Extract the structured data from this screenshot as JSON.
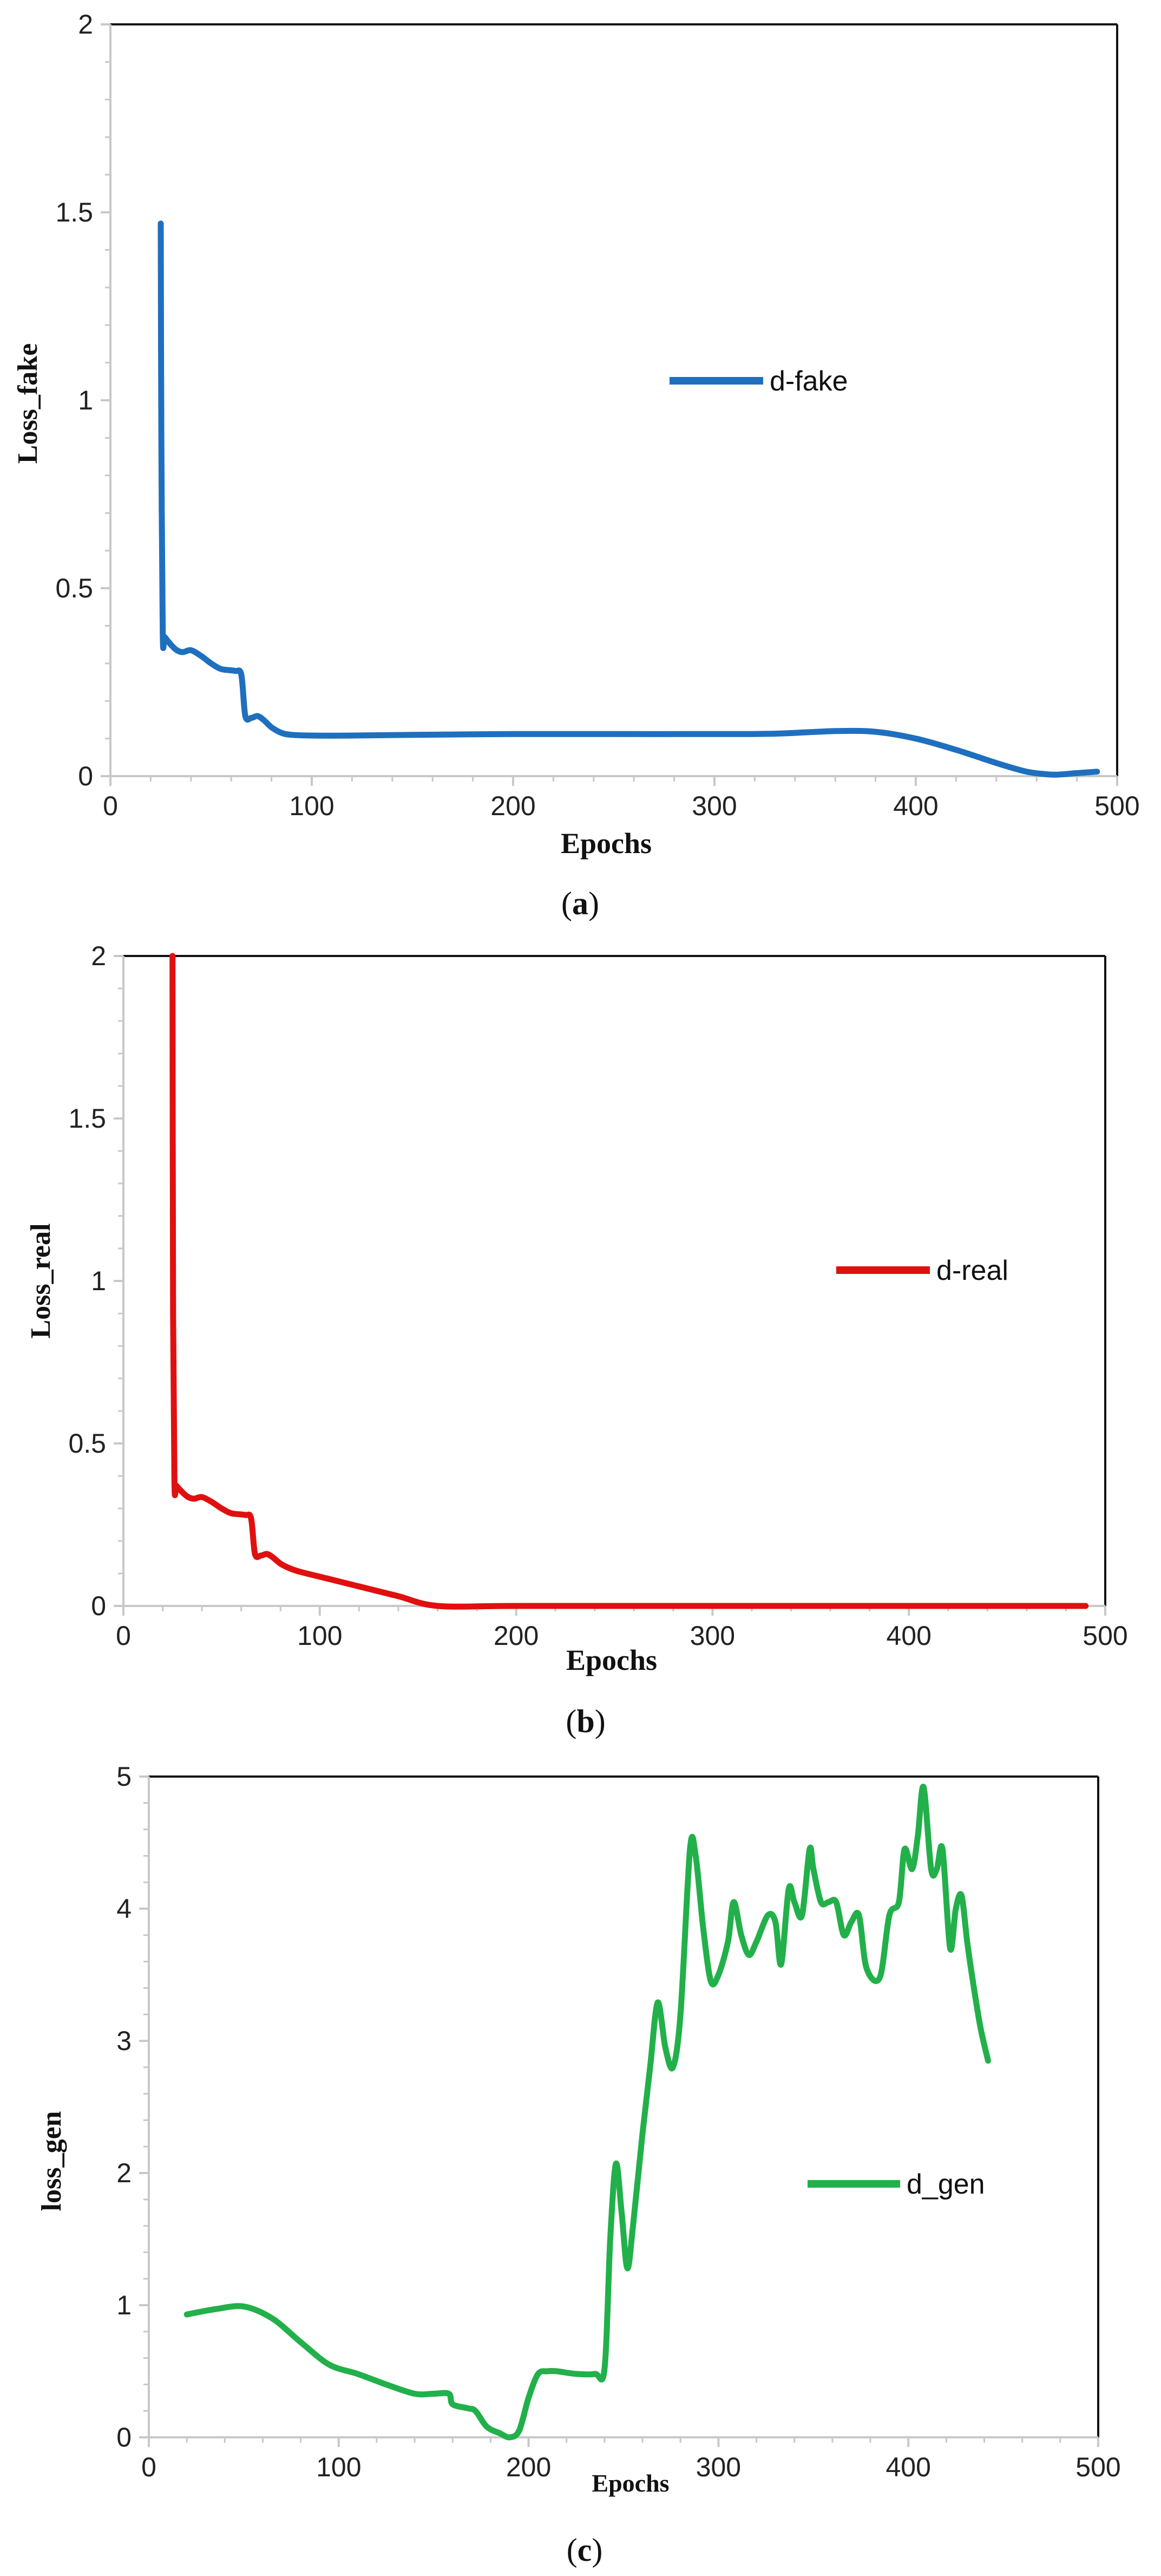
{
  "chart_data": [
    {
      "type": "line",
      "id": "a",
      "title": "",
      "xlabel": "Epochs",
      "ylabel": "Loss_fake",
      "xlim": [
        0,
        500
      ],
      "ylim": [
        0,
        2
      ],
      "xticks": [
        "0",
        "100",
        "200",
        "300",
        "400",
        "500"
      ],
      "yticks": [
        "0",
        "0.5",
        "1",
        "1.5",
        "2"
      ],
      "legend_position": "center-right",
      "caption": {
        "open": "(",
        "letter": "a",
        "close": ")"
      },
      "series": [
        {
          "name": "d-fake",
          "color": "#1f6fbf",
          "x": [
            25,
            25.3,
            26,
            27,
            30,
            33,
            36,
            40,
            45,
            50,
            55,
            62,
            65,
            67,
            70,
            73,
            76,
            80,
            85,
            90,
            100,
            120,
            150,
            200,
            250,
            300,
            330,
            360,
            380,
            400,
            420,
            440,
            455,
            465,
            470,
            480,
            490
          ],
          "values": [
            1.47,
            0.9,
            0.38,
            0.37,
            0.35,
            0.335,
            0.33,
            0.335,
            0.32,
            0.3,
            0.285,
            0.28,
            0.27,
            0.16,
            0.155,
            0.16,
            0.15,
            0.13,
            0.115,
            0.11,
            0.108,
            0.108,
            0.11,
            0.112,
            0.112,
            0.112,
            0.113,
            0.12,
            0.118,
            0.1,
            0.07,
            0.035,
            0.012,
            0.005,
            0.004,
            0.008,
            0.012
          ]
        }
      ]
    },
    {
      "type": "line",
      "id": "b",
      "title": "",
      "xlabel": "Epochs",
      "ylabel": "Loss_real",
      "xlim": [
        0,
        500
      ],
      "ylim": [
        0,
        2
      ],
      "xticks": [
        "0",
        "100",
        "200",
        "300",
        "400",
        "500"
      ],
      "yticks": [
        "0",
        "0.5",
        "1",
        "1.5",
        "2"
      ],
      "legend_position": "center-right",
      "caption": {
        "open": "(",
        "letter": "b",
        "close": ")"
      },
      "series": [
        {
          "name": "d-real",
          "color": "#e01010",
          "x": [
            25,
            25.3,
            26,
            27,
            30,
            33,
            36,
            40,
            45,
            50,
            55,
            62,
            65,
            67,
            70,
            73,
            76,
            80,
            85,
            90,
            100,
            120,
            140,
            160,
            200,
            300,
            400,
            490
          ],
          "values": [
            2.0,
            0.9,
            0.38,
            0.37,
            0.35,
            0.335,
            0.33,
            0.335,
            0.32,
            0.3,
            0.285,
            0.28,
            0.27,
            0.16,
            0.155,
            0.16,
            0.15,
            0.13,
            0.115,
            0.105,
            0.09,
            0.06,
            0.03,
            0.0,
            0.0,
            0.0,
            0.0,
            0.0
          ]
        }
      ]
    },
    {
      "type": "line",
      "id": "c",
      "title": "",
      "xlabel": "Epochs",
      "ylabel": "loss_gen",
      "xlim": [
        0,
        500
      ],
      "ylim": [
        0,
        5
      ],
      "xticks": [
        "0",
        "100",
        "200",
        "300",
        "400",
        "500"
      ],
      "yticks": [
        "0",
        "1",
        "2",
        "3",
        "4",
        "5"
      ],
      "legend_position": "center-right",
      "caption": {
        "open": "(",
        "letter": "c",
        "close": ")"
      },
      "series": [
        {
          "name": "d_gen",
          "color": "#22b04a",
          "x": [
            20,
            35,
            50,
            65,
            80,
            95,
            110,
            125,
            140,
            150,
            158,
            160,
            168,
            172,
            178,
            185,
            190,
            195,
            200,
            205,
            210,
            215,
            225,
            235,
            240,
            243,
            246,
            249,
            252,
            255,
            260,
            264,
            268,
            272,
            276,
            280,
            285,
            288,
            292,
            296,
            300,
            305,
            308,
            312,
            316,
            320,
            326,
            330,
            333,
            337,
            340,
            344,
            348,
            350,
            354,
            358,
            362,
            366,
            370,
            374,
            378,
            385,
            390,
            395,
            398,
            402,
            405,
            408,
            412,
            415,
            418,
            422,
            425,
            428,
            431,
            434,
            438,
            442
          ],
          "values": [
            0.93,
            0.97,
            0.99,
            0.9,
            0.72,
            0.55,
            0.48,
            0.4,
            0.33,
            0.33,
            0.33,
            0.25,
            0.22,
            0.2,
            0.08,
            0.03,
            0.0,
            0.05,
            0.3,
            0.48,
            0.5,
            0.5,
            0.48,
            0.48,
            0.52,
            1.5,
            2.07,
            1.7,
            1.28,
            1.6,
            2.3,
            2.8,
            3.29,
            2.95,
            2.8,
            3.2,
            4.45,
            4.4,
            3.85,
            3.45,
            3.5,
            3.75,
            4.05,
            3.8,
            3.65,
            3.75,
            3.95,
            3.9,
            3.58,
            4.15,
            4.05,
            3.95,
            4.45,
            4.3,
            4.05,
            4.05,
            4.05,
            3.8,
            3.9,
            3.95,
            3.55,
            3.48,
            3.95,
            4.05,
            4.45,
            4.3,
            4.55,
            4.92,
            4.3,
            4.3,
            4.45,
            3.7,
            4.0,
            4.1,
            3.75,
            3.45,
            3.1,
            2.85
          ]
        }
      ]
    }
  ]
}
